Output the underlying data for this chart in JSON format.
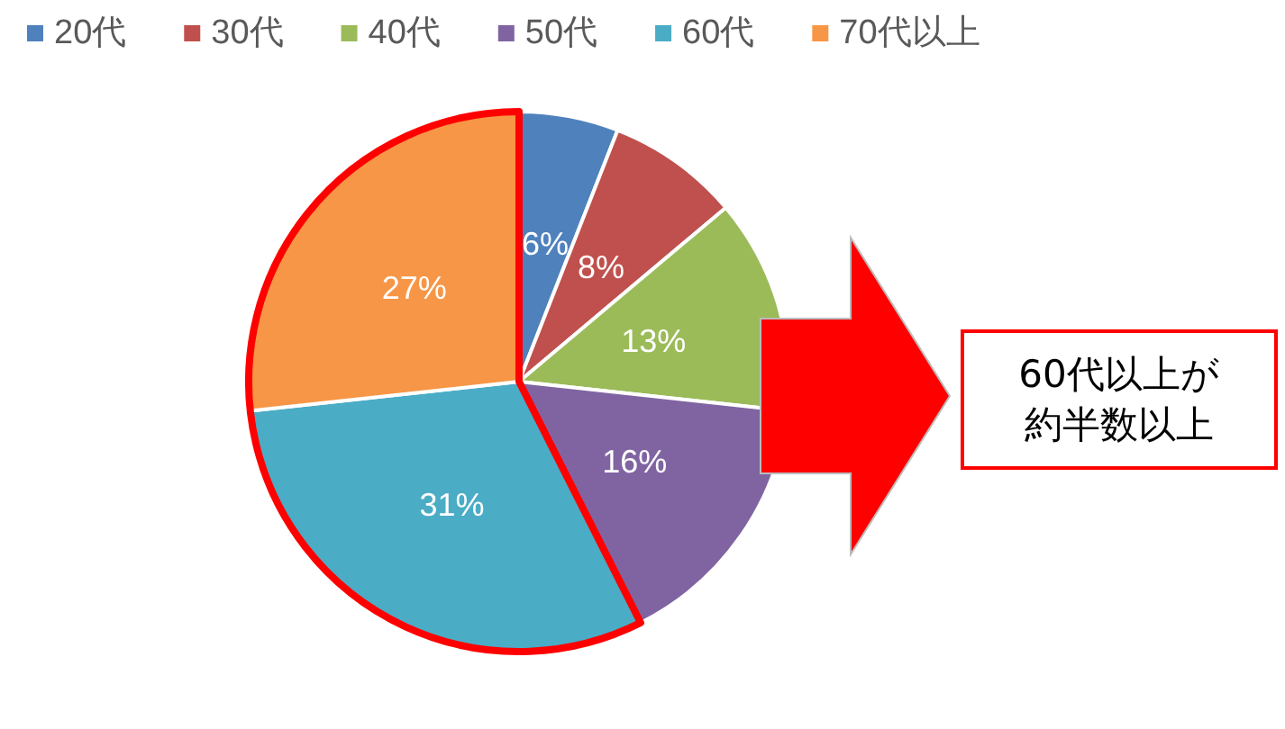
{
  "chart_data": {
    "type": "pie",
    "categories": [
      "20代",
      "30代",
      "40代",
      "50代",
      "60代",
      "70代以上"
    ],
    "values": [
      6,
      8,
      13,
      16,
      31,
      27
    ],
    "colors": [
      "#4f81bd",
      "#c0504d",
      "#9bbb59",
      "#8064a2",
      "#4bacc6",
      "#f79646"
    ],
    "value_labels": [
      "6%",
      "8%",
      "13%",
      "16%",
      "31%",
      "27%"
    ],
    "legend": "top left",
    "annotations": [
      "60代以上が約半数以上"
    ]
  }
}
